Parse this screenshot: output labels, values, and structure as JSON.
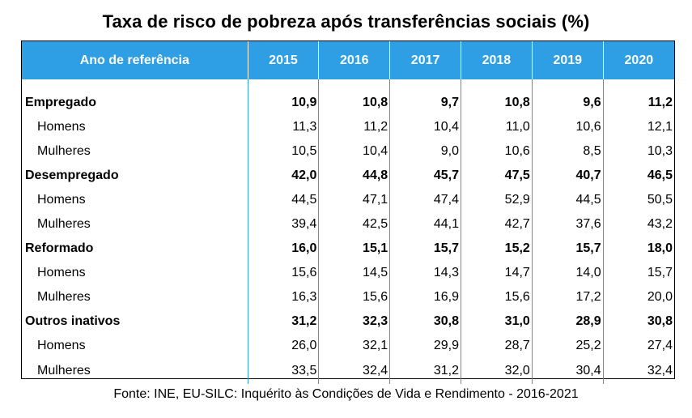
{
  "title": "Taxa de risco de pobreza após transferências sociais (%)",
  "header": {
    "label": "Ano de referência",
    "years": [
      "2015",
      "2016",
      "2017",
      "2018",
      "2019",
      "2020"
    ]
  },
  "rows": [
    {
      "label": "Empregado",
      "values": [
        "10,9",
        "10,8",
        "9,7",
        "10,8",
        "9,6",
        "11,2"
      ]
    },
    {
      "label": "Homens",
      "values": [
        "11,3",
        "11,2",
        "10,4",
        "11,0",
        "10,6",
        "12,1"
      ]
    },
    {
      "label": "Mulheres",
      "values": [
        "10,5",
        "10,4",
        "9,0",
        "10,6",
        "8,5",
        "10,3"
      ]
    },
    {
      "label": "Desempregado",
      "values": [
        "42,0",
        "44,8",
        "45,7",
        "47,5",
        "40,7",
        "46,5"
      ]
    },
    {
      "label": "Homens",
      "values": [
        "44,5",
        "47,1",
        "47,4",
        "52,9",
        "44,5",
        "50,5"
      ]
    },
    {
      "label": "Mulheres",
      "values": [
        "39,4",
        "42,5",
        "44,1",
        "42,7",
        "37,6",
        "43,2"
      ]
    },
    {
      "label": "Reformado",
      "values": [
        "16,0",
        "15,1",
        "15,7",
        "15,2",
        "15,7",
        "18,0"
      ]
    },
    {
      "label": "Homens",
      "values": [
        "15,6",
        "14,5",
        "14,3",
        "14,7",
        "14,0",
        "15,7"
      ]
    },
    {
      "label": "Mulheres",
      "values": [
        "16,3",
        "15,6",
        "16,9",
        "15,6",
        "17,2",
        "20,0"
      ]
    },
    {
      "label": "Outros inativos",
      "values": [
        "31,2",
        "32,3",
        "30,8",
        "31,0",
        "28,9",
        "30,8"
      ]
    },
    {
      "label": "Homens",
      "values": [
        "26,0",
        "32,1",
        "29,9",
        "28,7",
        "25,2",
        "27,4"
      ]
    },
    {
      "label": "Mulheres",
      "values": [
        "33,5",
        "32,4",
        "31,2",
        "32,0",
        "30,4",
        "32,4"
      ]
    }
  ],
  "source": "Fonte: INE, EU-SILC: Inquérito às Condições de Vida e Rendimento - 2016-2021"
}
